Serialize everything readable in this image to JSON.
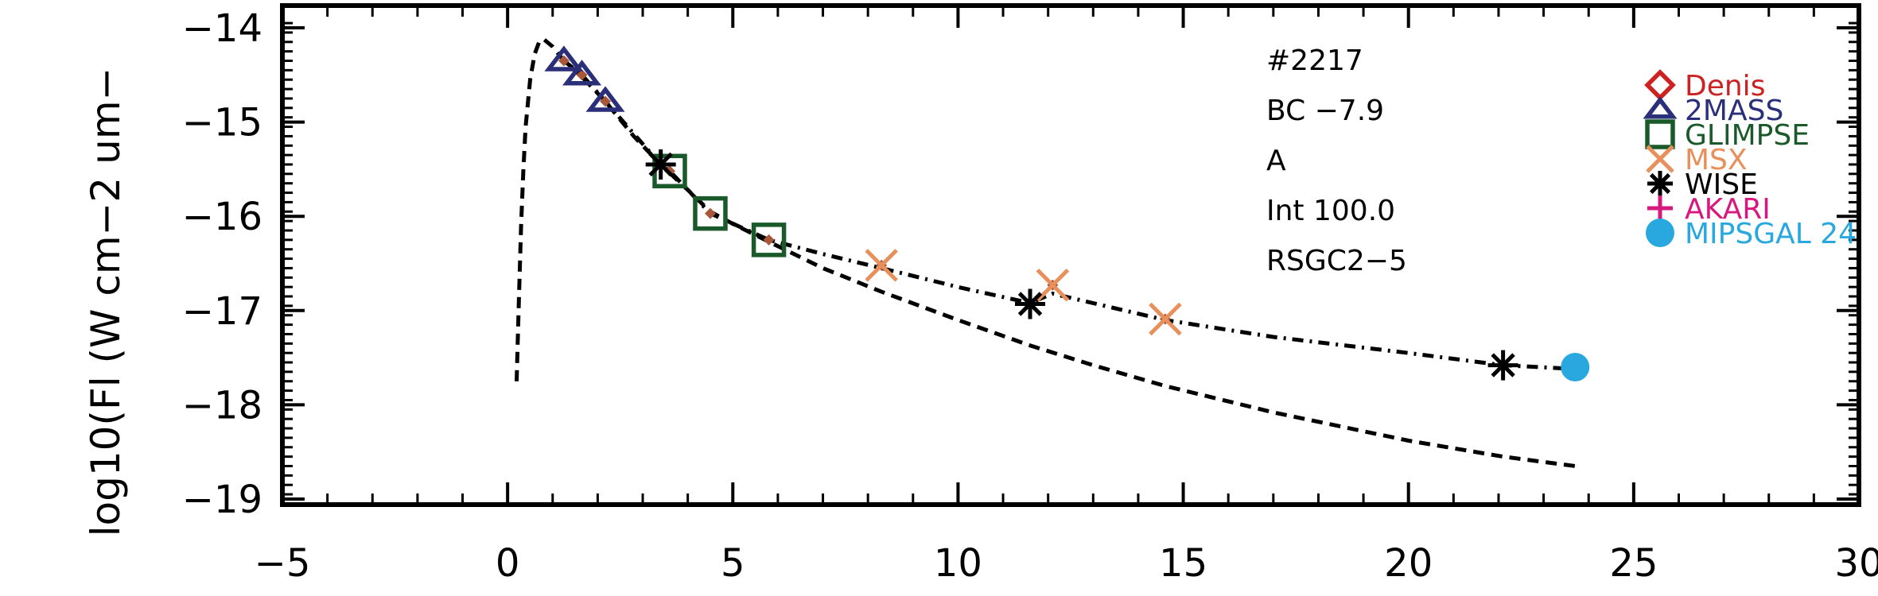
{
  "chart_data": {
    "type": "scatter",
    "title": "",
    "xlabel": "",
    "ylabel": "log10(Fl (W cm−2 um−",
    "xlim": [
      -5,
      30
    ],
    "ylim": [
      -19.2,
      -13.95
    ],
    "xticks": [
      -5,
      0,
      5,
      10,
      15,
      20,
      25,
      30
    ],
    "yticks": [
      -14,
      -15,
      -16,
      -17,
      -18,
      -19
    ],
    "xtick_labels": [
      "−5",
      "0",
      "5",
      "10",
      "15",
      "20",
      "25",
      "30"
    ],
    "ytick_labels": [
      "−14",
      "−15",
      "−16",
      "−17",
      "−18",
      "−19"
    ],
    "annotations": [
      "#2217",
      "BC −7.9",
      "A",
      "Int 100.0",
      "RSGC2−5"
    ],
    "legend_position": "top-right",
    "series": [
      {
        "name": "Denis",
        "color": "#cc2222",
        "marker": "diamond",
        "x": [],
        "y": []
      },
      {
        "name": "2MASS",
        "color": "#2b2f7a",
        "marker": "triangle",
        "x": [
          1.25,
          1.65,
          2.17
        ],
        "y": [
          -14.35,
          -14.5,
          -14.78
        ]
      },
      {
        "name": "GLIMPSE",
        "color": "#1a5a2a",
        "marker": "square",
        "x": [
          3.6,
          4.5,
          5.8
        ],
        "y": [
          -15.52,
          -15.97,
          -16.25
        ]
      },
      {
        "name": "MSX",
        "color": "#e8905c",
        "marker": "x",
        "x": [
          8.3,
          12.1,
          14.6
        ],
        "y": [
          -16.52,
          -16.73,
          -17.09
        ]
      },
      {
        "name": "WISE",
        "color": "#000000",
        "marker": "asterisk",
        "x": [
          3.4,
          11.6,
          22.1
        ],
        "y": [
          -15.45,
          -16.93,
          -17.58
        ]
      },
      {
        "name": "AKARI",
        "color": "#d6197f",
        "marker": "plus",
        "x": [],
        "y": []
      },
      {
        "name": "MIPSGAL 24",
        "color": "#29a8df",
        "marker": "circle",
        "x": [
          23.7
        ],
        "y": [
          -17.6
        ]
      }
    ],
    "model_points": {
      "color": "#a9573a",
      "x": [
        1.25,
        1.65,
        2.17,
        3.4,
        3.6,
        4.5,
        5.8,
        8.3,
        11.6,
        12.1,
        14.6,
        22.1,
        23.7
      ],
      "y": [
        -14.35,
        -14.5,
        -14.78,
        -15.45,
        -15.52,
        -15.97,
        -16.25,
        -16.52,
        -16.93,
        -16.73,
        -17.09,
        -17.58,
        -17.6
      ]
    },
    "lines": [
      {
        "style": "dashed",
        "x": [
          0.2,
          0.25,
          0.3,
          0.35,
          0.4,
          0.5,
          0.6,
          0.7,
          0.8,
          1.0,
          1.25,
          1.65,
          2.17,
          2.8,
          3.4,
          4.0,
          4.5,
          5.0,
          5.8,
          7.0,
          8.3,
          10.0,
          11.6,
          13.0,
          14.6,
          17.0,
          20.0,
          22.1,
          23.7
        ],
        "y": [
          -17.75,
          -16.9,
          -16.1,
          -15.5,
          -15.05,
          -14.55,
          -14.28,
          -14.15,
          -14.12,
          -14.2,
          -14.35,
          -14.52,
          -14.78,
          -15.15,
          -15.45,
          -15.72,
          -15.95,
          -16.08,
          -16.27,
          -16.55,
          -16.8,
          -17.1,
          -17.37,
          -17.58,
          -17.8,
          -18.08,
          -18.38,
          -18.55,
          -18.65
        ]
      },
      {
        "style": "dashdot",
        "x": [
          1.25,
          1.65,
          2.17,
          3.4,
          3.6,
          4.5,
          5.8,
          7.0,
          8.3,
          10.0,
          11.6,
          12.1,
          14.6,
          17.0,
          20.0,
          22.1,
          23.7
        ],
        "y": [
          -14.35,
          -14.5,
          -14.78,
          -15.45,
          -15.52,
          -15.97,
          -16.25,
          -16.4,
          -16.55,
          -16.75,
          -16.92,
          -16.82,
          -17.1,
          -17.28,
          -17.45,
          -17.58,
          -17.62
        ]
      }
    ]
  }
}
